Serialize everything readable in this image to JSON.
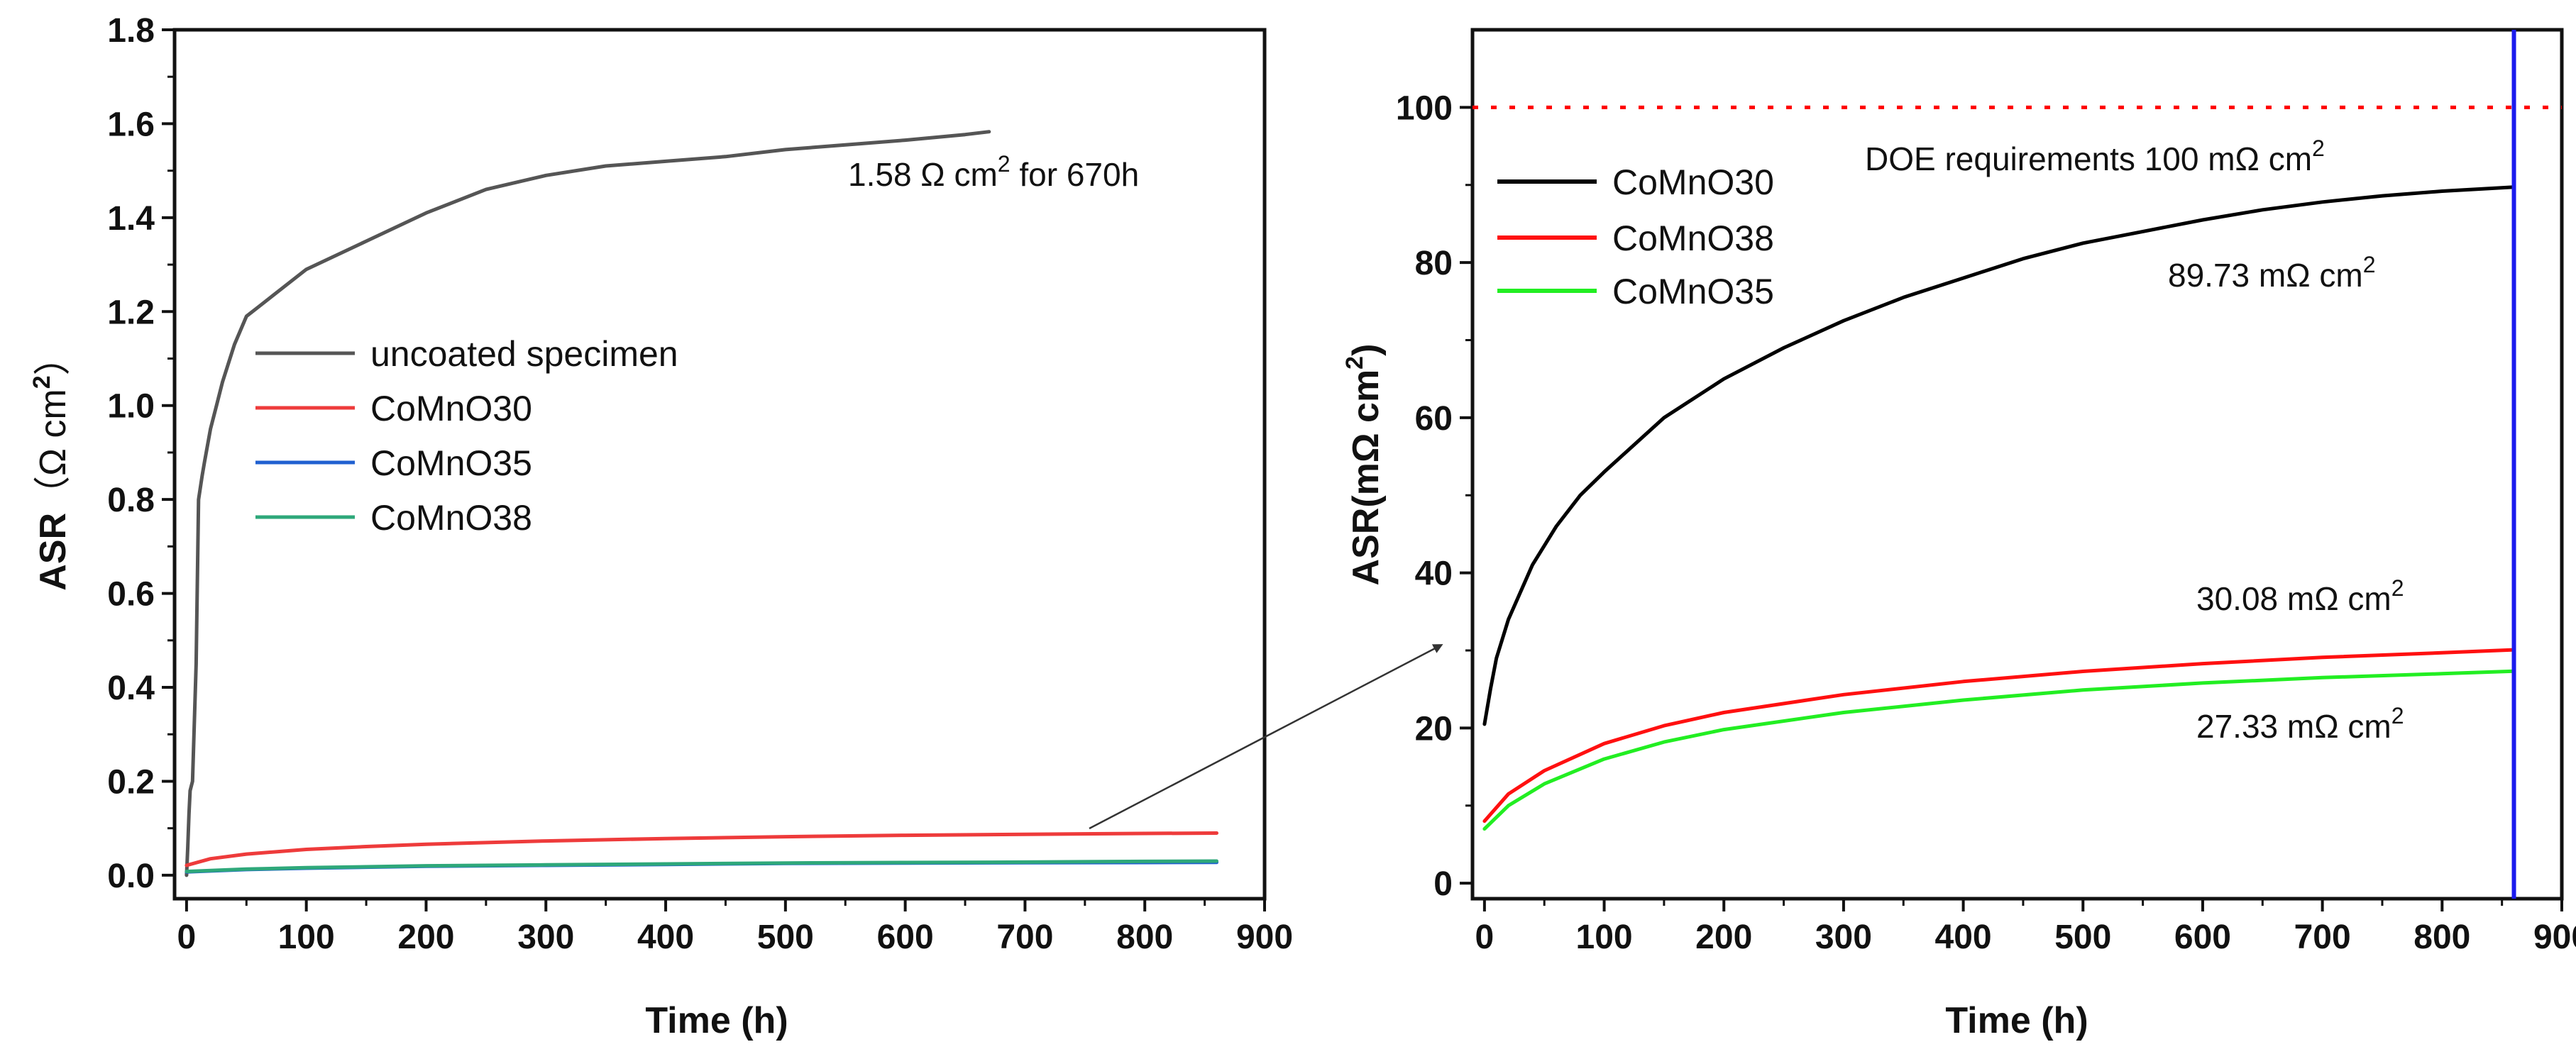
{
  "chart_data": [
    {
      "id": "left",
      "type": "line",
      "title": "",
      "xlabel": "Time (h)",
      "ylabel_main": "ASR",
      "ylabel_unit": "（Ω cm",
      "ylabel_sup": "2",
      "ylabel_close": "）",
      "xlim": [
        -10,
        900
      ],
      "ylim": [
        -0.05,
        1.8
      ],
      "xticks": [
        "0",
        "100",
        "200",
        "300",
        "400",
        "500",
        "600",
        "700",
        "800",
        "900"
      ],
      "yticks": [
        "0.0",
        "0.2",
        "0.4",
        "0.6",
        "0.8",
        "1.0",
        "1.2",
        "1.4",
        "1.6",
        "1.8"
      ],
      "legend_position": "center-left",
      "series": [
        {
          "name": "uncoated specimen",
          "color": "#555555",
          "x": [
            0,
            1,
            2,
            3,
            5,
            8,
            10,
            13,
            15,
            20,
            25,
            30,
            40,
            50,
            60,
            80,
            100,
            150,
            200,
            250,
            300,
            350,
            400,
            450,
            500,
            550,
            600,
            650,
            670
          ],
          "y": [
            0.0,
            0.06,
            0.13,
            0.18,
            0.2,
            0.45,
            0.8,
            0.85,
            0.88,
            0.95,
            1.0,
            1.05,
            1.13,
            1.19,
            1.21,
            1.25,
            1.29,
            1.35,
            1.41,
            1.46,
            1.49,
            1.51,
            1.52,
            1.53,
            1.545,
            1.555,
            1.565,
            1.577,
            1.583
          ]
        },
        {
          "name": "CoMnO30",
          "color": "#ee3b3b",
          "x": [
            0,
            20,
            50,
            100,
            150,
            200,
            300,
            400,
            500,
            600,
            700,
            800,
            860
          ],
          "y": [
            0.021,
            0.035,
            0.045,
            0.055,
            0.061,
            0.066,
            0.073,
            0.078,
            0.082,
            0.085,
            0.087,
            0.089,
            0.0897
          ]
        },
        {
          "name": "CoMnO35",
          "color": "#2060d0",
          "x": [
            0,
            50,
            100,
            200,
            300,
            400,
            500,
            600,
            700,
            800,
            860
          ],
          "y": [
            0.007,
            0.012,
            0.015,
            0.019,
            0.021,
            0.023,
            0.025,
            0.026,
            0.0265,
            0.027,
            0.0273
          ]
        },
        {
          "name": "CoMnO38",
          "color": "#2ea87a",
          "x": [
            0,
            50,
            100,
            200,
            300,
            400,
            500,
            600,
            700,
            800,
            860
          ],
          "y": [
            0.008,
            0.013,
            0.016,
            0.02,
            0.022,
            0.024,
            0.026,
            0.027,
            0.028,
            0.0295,
            0.0301
          ]
        }
      ],
      "annotations": [
        {
          "text": "1.58 Ω cm",
          "sup": "2",
          "suffix": " for 670h",
          "x": 500,
          "y": 1.48
        }
      ]
    },
    {
      "id": "right",
      "type": "line",
      "title": "",
      "xlabel": "Time (h)",
      "ylabel": "ASR(mΩ cm",
      "ylabel_sup": "2",
      "ylabel_close": ")",
      "xlim": [
        -10,
        900
      ],
      "ylim": [
        -2,
        110
      ],
      "xticks": [
        "0",
        "100",
        "200",
        "300",
        "400",
        "500",
        "600",
        "700",
        "800",
        "900"
      ],
      "yticks": [
        "0",
        "20",
        "40",
        "60",
        "80",
        "100"
      ],
      "legend_position": "top-left",
      "series": [
        {
          "name": "CoMnO30",
          "color": "#000000",
          "x": [
            0,
            5,
            10,
            20,
            40,
            60,
            80,
            100,
            150,
            200,
            250,
            300,
            350,
            400,
            450,
            500,
            550,
            600,
            650,
            700,
            750,
            800,
            860
          ],
          "y": [
            20.5,
            25,
            29,
            34,
            41,
            46,
            50,
            53,
            60,
            65,
            69,
            72.5,
            75.5,
            78,
            80.5,
            82.5,
            84,
            85.5,
            86.8,
            87.8,
            88.6,
            89.2,
            89.73
          ]
        },
        {
          "name": "CoMnO38",
          "color": "#ff1010",
          "x": [
            0,
            20,
            50,
            100,
            150,
            200,
            300,
            400,
            500,
            600,
            700,
            800,
            860
          ],
          "y": [
            8,
            11.5,
            14.5,
            18,
            20.3,
            22,
            24.3,
            26,
            27.3,
            28.3,
            29.1,
            29.7,
            30.08
          ]
        },
        {
          "name": "CoMnO35",
          "color": "#22ee22",
          "x": [
            0,
            20,
            50,
            100,
            150,
            200,
            300,
            400,
            500,
            600,
            700,
            800,
            860
          ],
          "y": [
            7,
            10,
            12.8,
            16,
            18.2,
            19.8,
            22,
            23.6,
            24.9,
            25.8,
            26.5,
            27,
            27.33
          ]
        }
      ],
      "reference_line": {
        "y": 100,
        "color": "#ff0000",
        "label": "DOE requirements 100 mΩ cm",
        "label_sup": "2"
      },
      "vertical_line": {
        "x": 860,
        "color": "#1a1aee"
      },
      "annotations": [
        {
          "text": "89.73 mΩ cm",
          "sup": "2"
        },
        {
          "text": "30.08 mΩ cm",
          "sup": "2"
        },
        {
          "text": "27.33 mΩ cm",
          "sup": "2"
        }
      ]
    }
  ]
}
